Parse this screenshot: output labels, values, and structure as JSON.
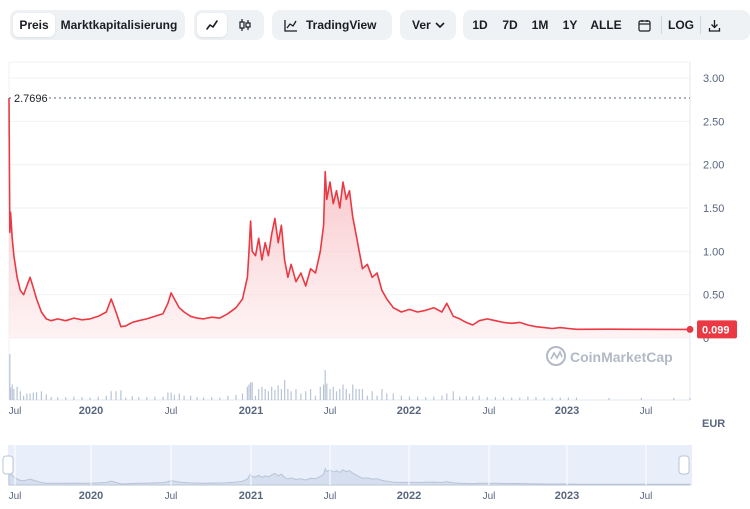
{
  "toolbar": {
    "price_tab": "Preis",
    "marketcap_tab": "Marktkapitalisierung",
    "tradingview_label": "TradingView",
    "compare_label": "Ver",
    "ranges": [
      "1D",
      "7D",
      "1M",
      "1Y",
      "ALLE"
    ],
    "log_label": "LOG"
  },
  "currency_label": "EUR",
  "watermark": "CoinMarketCap",
  "colors": {
    "line": "#ea3943",
    "fill_top": "#f6b8bc",
    "grid": "#eff2f5",
    "volume": "#b8c4d6",
    "navigator": "#e8eefa"
  },
  "chart_data": {
    "type": "area",
    "yticks": [
      "3.00",
      "2.50",
      "2.00",
      "1.50",
      "1.00",
      "0.50",
      "0"
    ],
    "ylim": [
      0,
      3.0
    ],
    "max_label": "2.7696",
    "max_value": 2.7696,
    "last_label": "0.099",
    "last_value": 0.099,
    "xtick_labels": [
      "Jul",
      "2020",
      "Jul",
      "2021",
      "Jul",
      "2022",
      "Jul",
      "2023",
      "Jul"
    ],
    "xtick_major": [
      false,
      true,
      false,
      true,
      false,
      true,
      false,
      true,
      false
    ],
    "x_start": 2019.5,
    "x_end": 2023.7,
    "series": [
      {
        "values": [
          [
            2019.5,
            2.7696
          ],
          [
            2019.505,
            1.22
          ],
          [
            2019.51,
            1.45
          ],
          [
            2019.52,
            1.15
          ],
          [
            2019.53,
            0.95
          ],
          [
            2019.55,
            0.7
          ],
          [
            2019.57,
            0.55
          ],
          [
            2019.59,
            0.5
          ],
          [
            2019.61,
            0.6
          ],
          [
            2019.63,
            0.7
          ],
          [
            2019.65,
            0.58
          ],
          [
            2019.67,
            0.45
          ],
          [
            2019.7,
            0.3
          ],
          [
            2019.73,
            0.22
          ],
          [
            2019.76,
            0.2
          ],
          [
            2019.8,
            0.22
          ],
          [
            2019.85,
            0.2
          ],
          [
            2019.9,
            0.23
          ],
          [
            2019.95,
            0.21
          ],
          [
            2020.0,
            0.22
          ],
          [
            2020.05,
            0.25
          ],
          [
            2020.1,
            0.3
          ],
          [
            2020.13,
            0.45
          ],
          [
            2020.16,
            0.3
          ],
          [
            2020.19,
            0.13
          ],
          [
            2020.22,
            0.14
          ],
          [
            2020.26,
            0.18
          ],
          [
            2020.3,
            0.2
          ],
          [
            2020.35,
            0.22
          ],
          [
            2020.4,
            0.25
          ],
          [
            2020.45,
            0.28
          ],
          [
            2020.48,
            0.4
          ],
          [
            2020.5,
            0.52
          ],
          [
            2020.52,
            0.45
          ],
          [
            2020.55,
            0.35
          ],
          [
            2020.58,
            0.3
          ],
          [
            2020.62,
            0.25
          ],
          [
            2020.66,
            0.23
          ],
          [
            2020.7,
            0.22
          ],
          [
            2020.75,
            0.24
          ],
          [
            2020.8,
            0.23
          ],
          [
            2020.85,
            0.28
          ],
          [
            2020.9,
            0.35
          ],
          [
            2020.94,
            0.45
          ],
          [
            2020.97,
            0.7
          ],
          [
            2020.98,
            1.0
          ],
          [
            2020.99,
            1.35
          ],
          [
            2021.0,
            1.0
          ],
          [
            2021.02,
            0.95
          ],
          [
            2021.04,
            1.15
          ],
          [
            2021.06,
            0.9
          ],
          [
            2021.08,
            1.1
          ],
          [
            2021.1,
            0.95
          ],
          [
            2021.12,
            1.2
          ],
          [
            2021.14,
            1.38
          ],
          [
            2021.16,
            1.1
          ],
          [
            2021.18,
            1.3
          ],
          [
            2021.2,
            0.9
          ],
          [
            2021.22,
            0.7
          ],
          [
            2021.24,
            0.85
          ],
          [
            2021.27,
            0.65
          ],
          [
            2021.3,
            0.75
          ],
          [
            2021.33,
            0.6
          ],
          [
            2021.36,
            0.8
          ],
          [
            2021.39,
            0.75
          ],
          [
            2021.42,
            1.0
          ],
          [
            2021.44,
            1.3
          ],
          [
            2021.45,
            1.92
          ],
          [
            2021.46,
            1.6
          ],
          [
            2021.48,
            1.8
          ],
          [
            2021.5,
            1.55
          ],
          [
            2021.52,
            1.7
          ],
          [
            2021.54,
            1.5
          ],
          [
            2021.56,
            1.8
          ],
          [
            2021.58,
            1.6
          ],
          [
            2021.6,
            1.7
          ],
          [
            2021.62,
            1.4
          ],
          [
            2021.64,
            1.2
          ],
          [
            2021.66,
            1.0
          ],
          [
            2021.68,
            0.8
          ],
          [
            2021.71,
            0.85
          ],
          [
            2021.74,
            0.7
          ],
          [
            2021.77,
            0.75
          ],
          [
            2021.8,
            0.55
          ],
          [
            2021.83,
            0.45
          ],
          [
            2021.87,
            0.35
          ],
          [
            2021.92,
            0.3
          ],
          [
            2021.97,
            0.33
          ],
          [
            2022.02,
            0.3
          ],
          [
            2022.07,
            0.32
          ],
          [
            2022.12,
            0.35
          ],
          [
            2022.17,
            0.3
          ],
          [
            2022.2,
            0.4
          ],
          [
            2022.24,
            0.25
          ],
          [
            2022.28,
            0.22
          ],
          [
            2022.32,
            0.18
          ],
          [
            2022.36,
            0.15
          ],
          [
            2022.4,
            0.2
          ],
          [
            2022.45,
            0.22
          ],
          [
            2022.5,
            0.2
          ],
          [
            2022.55,
            0.18
          ],
          [
            2022.6,
            0.17
          ],
          [
            2022.65,
            0.18
          ],
          [
            2022.7,
            0.15
          ],
          [
            2022.75,
            0.13
          ],
          [
            2022.8,
            0.12
          ],
          [
            2022.85,
            0.11
          ],
          [
            2022.9,
            0.12
          ],
          [
            2022.95,
            0.11
          ],
          [
            2023.0,
            0.1
          ],
          [
            2023.2,
            0.101
          ],
          [
            2023.4,
            0.1
          ],
          [
            2023.6,
            0.099
          ],
          [
            2023.7,
            0.099
          ]
        ]
      }
    ]
  }
}
